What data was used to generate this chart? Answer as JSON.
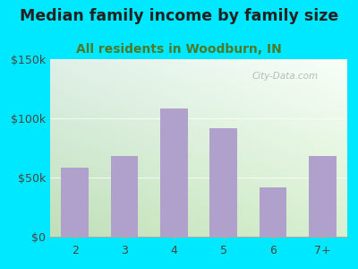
{
  "categories": [
    "2",
    "3",
    "4",
    "5",
    "6",
    "7+"
  ],
  "values": [
    58000,
    68000,
    108000,
    92000,
    42000,
    68000
  ],
  "bar_color": "#b0a0cc",
  "title": "Median family income by family size",
  "subtitle": "All residents in Woodburn, IN",
  "title_fontsize": 12.5,
  "subtitle_fontsize": 10,
  "title_color": "#222222",
  "subtitle_color": "#4a7a2a",
  "background_outer": "#00e8ff",
  "ylim": [
    0,
    150000
  ],
  "yticks": [
    0,
    50000,
    100000,
    150000
  ],
  "watermark": "City-Data.com",
  "bg_top_left": "#dff0e8",
  "bg_top_right": "#f0f8f4",
  "bg_bottom_left": "#c8e8c0",
  "bg_bottom_right": "#e8f4e8"
}
